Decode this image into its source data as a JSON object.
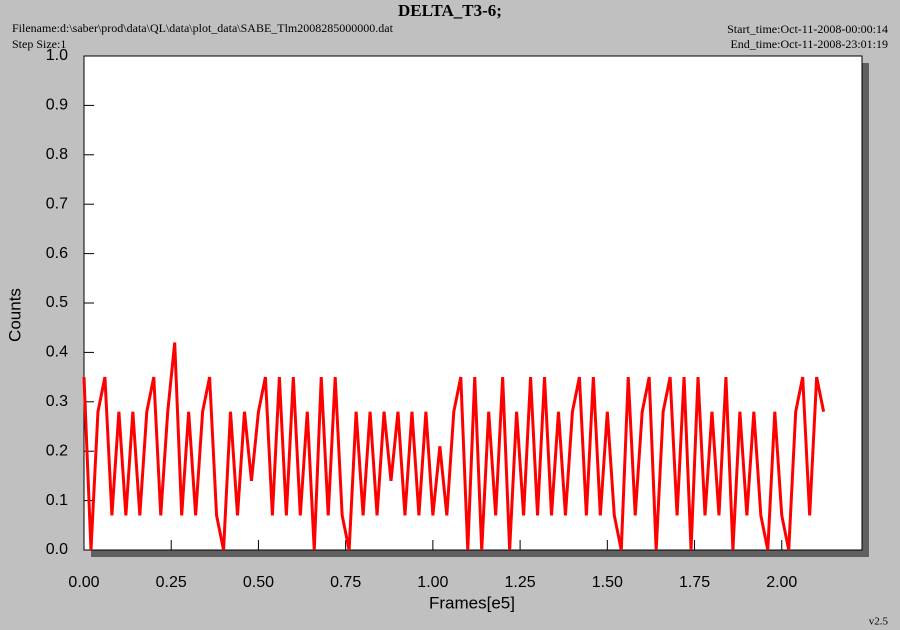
{
  "chart_data": {
    "type": "line",
    "title": "DELTA_T3-6;",
    "filename": "Filename:d:\\saber\\prod\\data\\QL\\data\\plot_data\\SABE_Tlm2008285000000.dat",
    "step_size": "Step Size:1",
    "start_time": "Start_time:Oct-11-2008-00:00:14",
    "end_time": "End_time:Oct-11-2008-23:01:19",
    "version": "v2.5",
    "xlabel": "Frames[e5]",
    "ylabel": "Counts",
    "color": "#ff0000",
    "xlim": [
      0,
      2.23
    ],
    "ylim": [
      0,
      1.0
    ],
    "xticks": [
      {
        "value": 0,
        "label": "0.00"
      },
      {
        "value": 0.25,
        "label": "0.25"
      },
      {
        "value": 0.5,
        "label": "0.50"
      },
      {
        "value": 0.75,
        "label": "0.75"
      },
      {
        "value": 1,
        "label": "1.00"
      },
      {
        "value": 1.25,
        "label": "1.25"
      },
      {
        "value": 1.5,
        "label": "1.50"
      },
      {
        "value": 1.75,
        "label": "1.75"
      },
      {
        "value": 2,
        "label": "2.00"
      }
    ],
    "yticks": [
      {
        "value": 0,
        "label": "0.0"
      },
      0.1,
      0.2,
      0.3,
      0.4,
      0.5,
      0.6,
      0.7,
      0.8,
      0.9,
      {
        "value": 1,
        "label": "1.0"
      }
    ],
    "x": [
      0.0,
      0.02,
      0.04,
      0.06,
      0.08,
      0.1,
      0.12,
      0.14,
      0.16,
      0.18,
      0.2,
      0.22,
      0.24,
      0.26,
      0.28,
      0.3,
      0.32,
      0.34,
      0.36,
      0.38,
      0.4,
      0.42,
      0.44,
      0.46,
      0.48,
      0.5,
      0.52,
      0.54,
      0.56,
      0.58,
      0.6,
      0.62,
      0.64,
      0.66,
      0.68,
      0.7,
      0.72,
      0.74,
      0.76,
      0.78,
      0.8,
      0.82,
      0.84,
      0.86,
      0.88,
      0.9,
      0.92,
      0.94,
      0.96,
      0.98,
      1.0,
      1.02,
      1.04,
      1.06,
      1.08,
      1.1,
      1.12,
      1.14,
      1.16,
      1.18,
      1.2,
      1.22,
      1.24,
      1.26,
      1.28,
      1.3,
      1.32,
      1.34,
      1.36,
      1.38,
      1.4,
      1.42,
      1.44,
      1.46,
      1.48,
      1.5,
      1.52,
      1.54,
      1.56,
      1.58,
      1.6,
      1.62,
      1.64,
      1.66,
      1.68,
      1.7,
      1.72,
      1.74,
      1.76,
      1.78,
      1.8,
      1.82,
      1.84,
      1.86,
      1.88,
      1.9,
      1.92,
      1.94,
      1.96,
      1.98,
      2.0,
      2.02,
      2.04,
      2.06,
      2.08,
      2.1,
      2.12
    ],
    "values": [
      0.35,
      0.0,
      0.28,
      0.35,
      0.07,
      0.28,
      0.07,
      0.28,
      0.07,
      0.28,
      0.35,
      0.07,
      0.28,
      0.42,
      0.07,
      0.28,
      0.07,
      0.28,
      0.35,
      0.07,
      0.0,
      0.28,
      0.07,
      0.28,
      0.14,
      0.28,
      0.35,
      0.07,
      0.35,
      0.07,
      0.35,
      0.07,
      0.28,
      0.0,
      0.35,
      0.07,
      0.35,
      0.07,
      0.0,
      0.28,
      0.07,
      0.28,
      0.07,
      0.28,
      0.14,
      0.28,
      0.07,
      0.28,
      0.07,
      0.28,
      0.07,
      0.21,
      0.07,
      0.28,
      0.35,
      0.0,
      0.35,
      0.0,
      0.28,
      0.07,
      0.35,
      0.0,
      0.28,
      0.07,
      0.35,
      0.07,
      0.35,
      0.07,
      0.28,
      0.07,
      0.28,
      0.35,
      0.07,
      0.35,
      0.07,
      0.28,
      0.07,
      0.0,
      0.35,
      0.07,
      0.28,
      0.35,
      0.0,
      0.28,
      0.35,
      0.07,
      0.35,
      0.0,
      0.35,
      0.07,
      0.28,
      0.07,
      0.35,
      0.0,
      0.28,
      0.07,
      0.28,
      0.07,
      0.0,
      0.28,
      0.07,
      0.0,
      0.28,
      0.35,
      0.07,
      0.35,
      0.28
    ]
  }
}
